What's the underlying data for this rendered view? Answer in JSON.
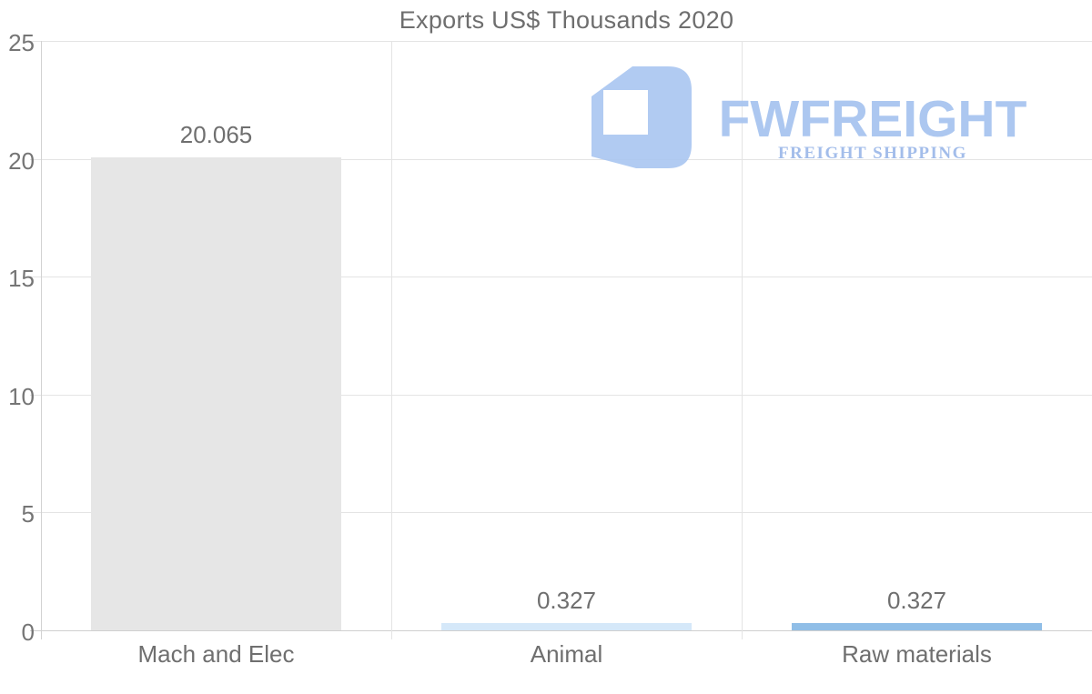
{
  "chart_data": {
    "type": "bar",
    "title": "Exports US$ Thousands 2020",
    "categories": [
      "Mach and Elec",
      "Animal",
      "Raw materials"
    ],
    "values": [
      20.065,
      0.327,
      0.327
    ],
    "value_labels": [
      "20.065",
      "0.327",
      "0.327"
    ],
    "bar_colors": [
      "#e6e6e6",
      "#d5e8f9",
      "#90bee7"
    ],
    "xlabel": "",
    "ylabel": "",
    "ylim": [
      0,
      25
    ],
    "yticks": [
      0,
      5,
      10,
      15,
      20,
      25
    ],
    "grid": true,
    "legend": false
  },
  "watermark": {
    "brand": "FWFREIGHT",
    "tagline": "FREIGHT SHIPPING",
    "icon": "fwfreight-logo",
    "icon_color": "#abc7f1",
    "brand_color": "#a6c3ef",
    "tagline_color": "#9cb8e9"
  },
  "style": {
    "background": "#ffffff",
    "title_color": "#6e6e6e",
    "tick_label_color": "#757575",
    "grid_color": "#e4e4e4",
    "axis_color": "#d2d2d2"
  }
}
